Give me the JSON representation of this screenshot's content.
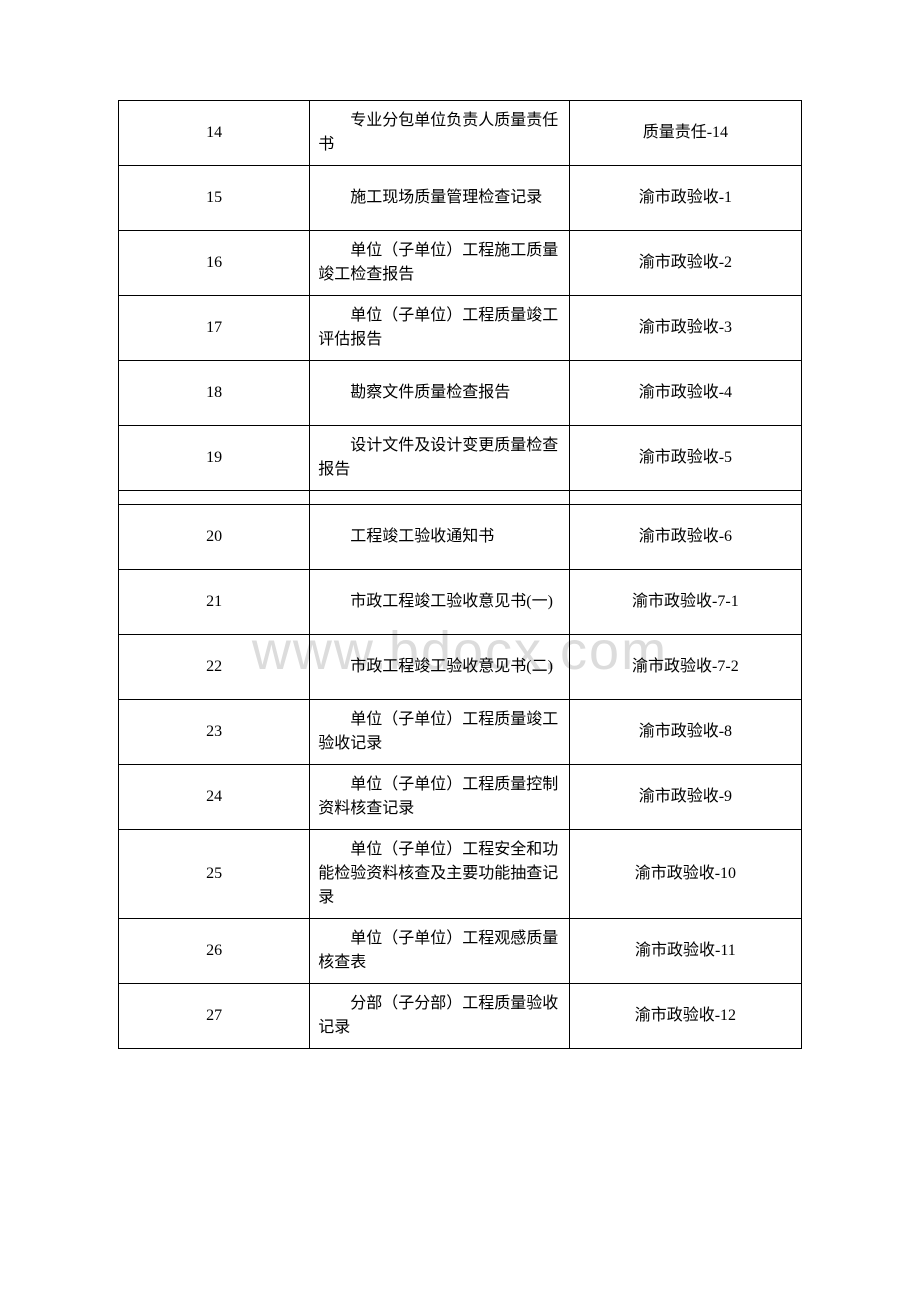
{
  "watermark": "www.bdocx.com",
  "rows_top": [
    {
      "num": "14",
      "desc": "专业分包单位负责人质量责任书",
      "code": "质量责任-14"
    },
    {
      "num": "15",
      "desc": "施工现场质量管理检查记录",
      "code": "渝市政验收-1"
    },
    {
      "num": "16",
      "desc": "单位（子单位）工程施工质量竣工检查报告",
      "code": "渝市政验收-2"
    },
    {
      "num": "17",
      "desc": "单位（子单位）工程质量竣工评估报告",
      "code": "渝市政验收-3"
    },
    {
      "num": "18",
      "desc": "勘察文件质量检查报告",
      "code": "渝市政验收-4"
    },
    {
      "num": "19",
      "desc": "设计文件及设计变更质量检查报告",
      "code": "渝市政验收-5"
    }
  ],
  "rows_bottom": [
    {
      "num": "20",
      "desc": "工程竣工验收通知书",
      "code": "渝市政验收-6"
    },
    {
      "num": "21",
      "desc": "市政工程竣工验收意见书(一)",
      "code": "渝市政验收-7-1"
    },
    {
      "num": "22",
      "desc": "市政工程竣工验收意见书(二)",
      "code": "渝市政验收-7-2"
    },
    {
      "num": "23",
      "desc": "单位（子单位）工程质量竣工验收记录",
      "code": "渝市政验收-8"
    },
    {
      "num": "24",
      "desc": "单位（子单位）工程质量控制资料核查记录",
      "code": "渝市政验收-9"
    },
    {
      "num": "25",
      "desc": "单位（子单位）工程安全和功能检验资料核查及主要功能抽查记录",
      "code": "渝市政验收-10"
    },
    {
      "num": "26",
      "desc": "单位（子单位）工程观感质量核查表",
      "code": "渝市政验收-11"
    },
    {
      "num": "27",
      "desc": "分部（子分部）工程质量验收记录",
      "code": "渝市政验收-12"
    }
  ]
}
